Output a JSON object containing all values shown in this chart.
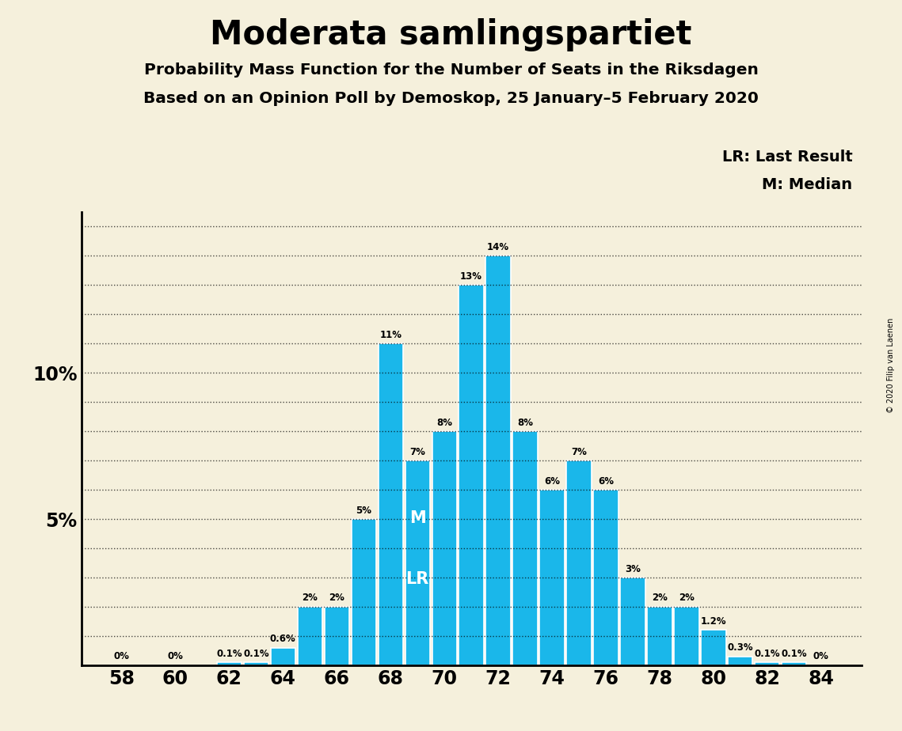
{
  "title": "Moderata samlingspartiet",
  "subtitle1": "Probability Mass Function for the Number of Seats in the Riksdagen",
  "subtitle2": "Based on an Opinion Poll by Demoskop, 25 January–5 February 2020",
  "copyright": "© 2020 Filip van Laenen",
  "seats": [
    58,
    59,
    60,
    61,
    62,
    63,
    64,
    65,
    66,
    67,
    68,
    69,
    70,
    71,
    72,
    73,
    74,
    75,
    76,
    77,
    78,
    79,
    80,
    81,
    82,
    83,
    84
  ],
  "probabilities": [
    0.0,
    0.0,
    0.0,
    0.0,
    0.1,
    0.1,
    0.6,
    2.0,
    2.0,
    5.0,
    11.0,
    7.0,
    8.0,
    13.0,
    14.0,
    8.0,
    6.0,
    7.0,
    6.0,
    3.0,
    2.0,
    2.0,
    1.2,
    0.3,
    0.1,
    0.1,
    0.0
  ],
  "labels": [
    "0%",
    "",
    "0%",
    "",
    "0.1%",
    "0.1%",
    "0.6%",
    "2%",
    "2%",
    "5%",
    "11%",
    "7%",
    "8%",
    "13%",
    "14%",
    "8%",
    "6%",
    "7%",
    "6%",
    "3%",
    "2%",
    "2%",
    "1.2%",
    "0.3%",
    "0.1%",
    "0.1%",
    "0%"
  ],
  "bar_color": "#1ab7ea",
  "background_color": "#f5f0dc",
  "median_seat": 71,
  "last_result_seat": 70,
  "legend_lr": "LR: Last Result",
  "legend_m": "M: Median",
  "ylim": [
    0,
    15.5
  ],
  "xtick_positions": [
    58,
    60,
    62,
    64,
    66,
    68,
    70,
    72,
    74,
    76,
    78,
    80,
    82,
    84
  ],
  "xlim_left": 56.5,
  "xlim_right": 85.5
}
